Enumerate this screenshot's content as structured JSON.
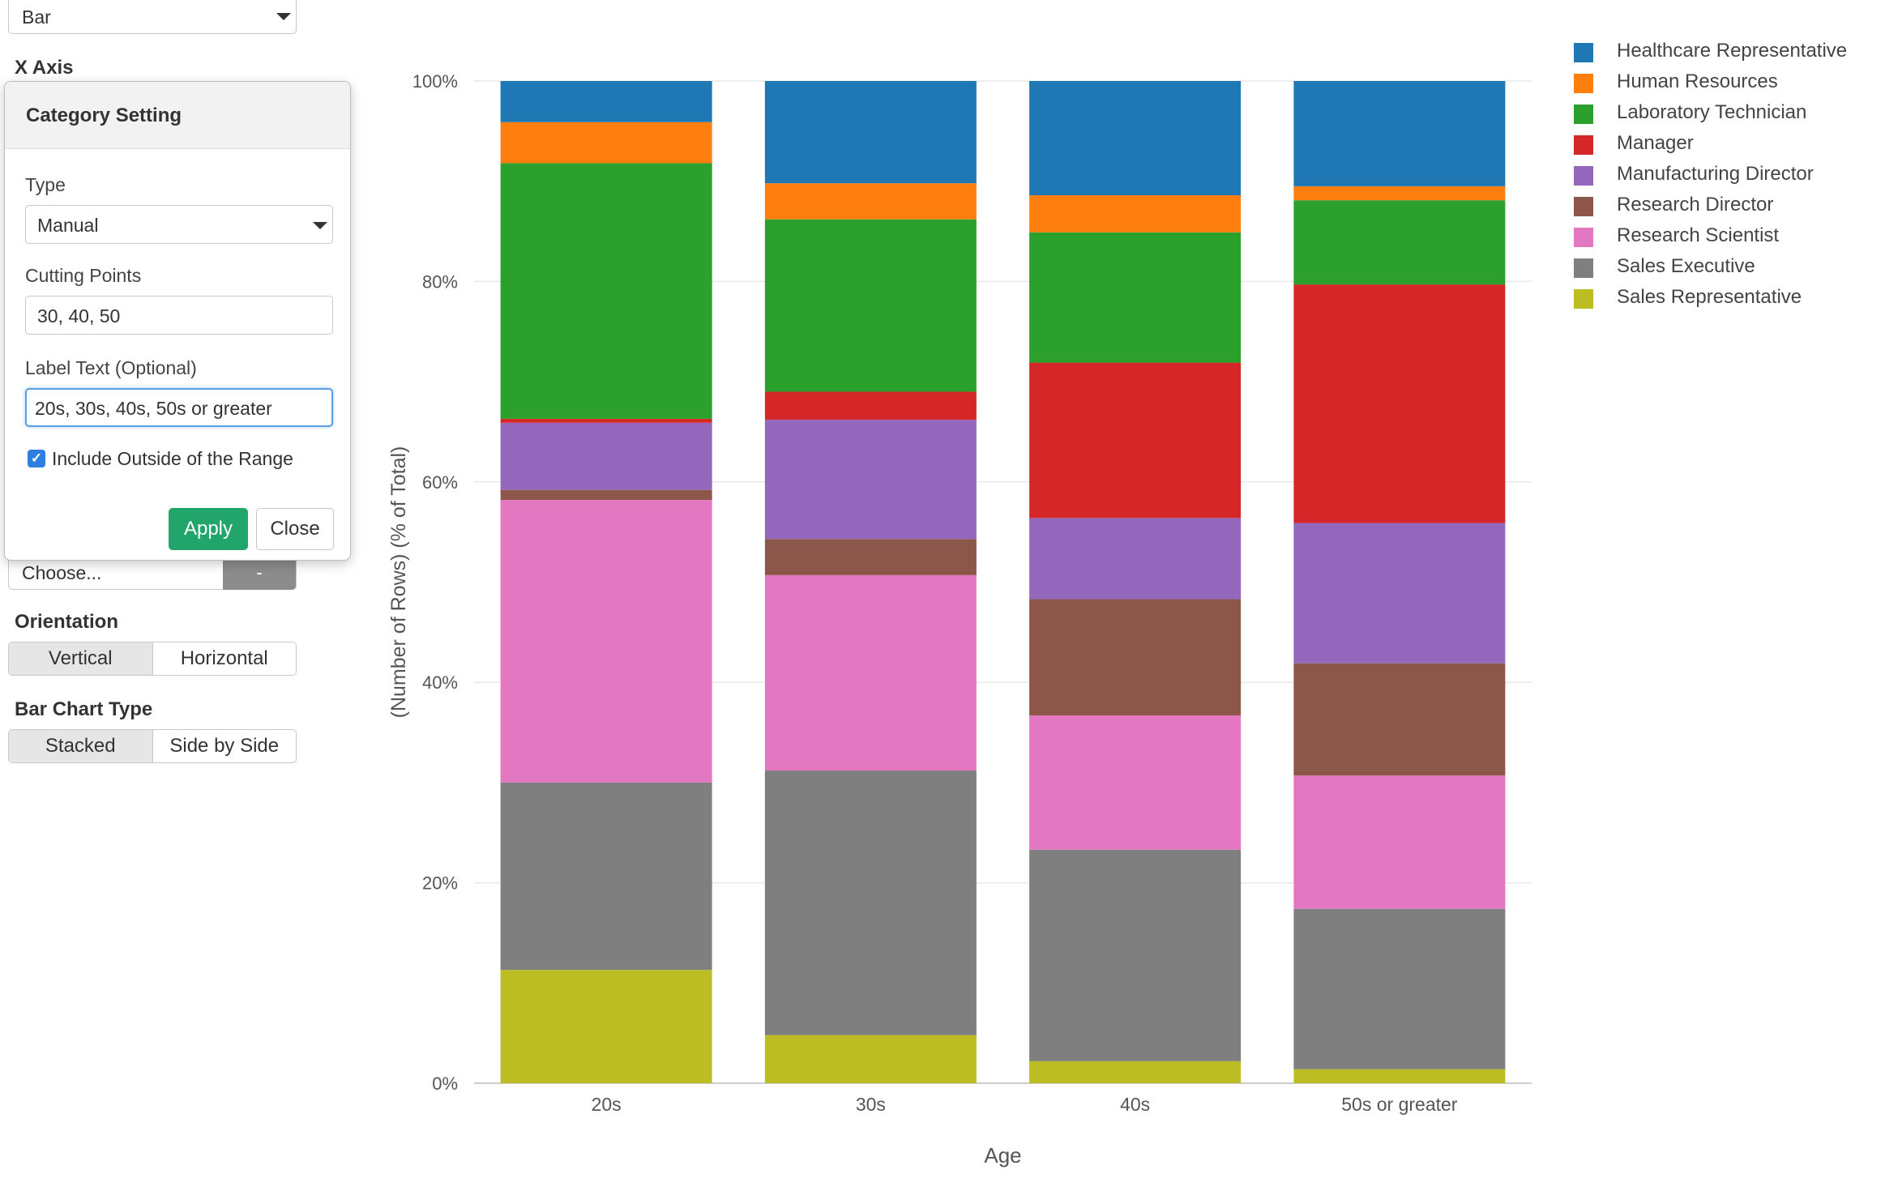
{
  "left_panel": {
    "chart_type_select": "Bar",
    "x_axis_label": "X Axis",
    "choose_placeholder": "Choose...",
    "choose_remove": "-",
    "orientation_label": "Orientation",
    "orientation_options": [
      "Vertical",
      "Horizontal"
    ],
    "orientation_selected": "Vertical",
    "bar_chart_type_label": "Bar Chart Type",
    "bar_chart_type_options": [
      "Stacked",
      "Side by Side"
    ],
    "bar_chart_type_selected": "Stacked"
  },
  "popover": {
    "title": "Category Setting",
    "type_label": "Type",
    "type_value": "Manual",
    "cutting_points_label": "Cutting Points",
    "cutting_points_value": "30, 40, 50",
    "label_text_label": "Label Text (Optional)",
    "label_text_value": "20s, 30s, 40s, 50s or greater",
    "include_outside_label": "Include Outside of the Range",
    "include_outside_checked": true,
    "apply_label": "Apply",
    "close_label": "Close"
  },
  "chart_data": {
    "type": "bar",
    "stacked": true,
    "categories": [
      "20s",
      "30s",
      "40s",
      "50s or greater"
    ],
    "xlabel": "Age",
    "ylabel": "(Number of Rows) (% of Total)",
    "ylim": [
      0,
      100
    ],
    "yticks": [
      "0%",
      "20%",
      "40%",
      "60%",
      "80%",
      "100%"
    ],
    "grid": true,
    "legend_position": "top-right",
    "series": [
      {
        "name": "Sales Representative",
        "color": "#bcbd22",
        "values": [
          11.3,
          4.8,
          2.2,
          1.4
        ]
      },
      {
        "name": "Sales Executive",
        "color": "#7f7f7f",
        "values": [
          18.7,
          26.4,
          21.1,
          16.0
        ]
      },
      {
        "name": "Research Scientist",
        "color": "#e377c2",
        "values": [
          28.2,
          19.5,
          13.4,
          13.3
        ]
      },
      {
        "name": "Research Director",
        "color": "#8c564b",
        "values": [
          1.0,
          3.6,
          11.6,
          11.2
        ]
      },
      {
        "name": "Manufacturing Director",
        "color": "#9467bd",
        "values": [
          6.7,
          11.9,
          8.1,
          14.0
        ]
      },
      {
        "name": "Manager",
        "color": "#d62728",
        "values": [
          0.4,
          2.8,
          15.5,
          23.8
        ]
      },
      {
        "name": "Laboratory Technician",
        "color": "#2ca02c",
        "values": [
          25.5,
          17.2,
          13.0,
          8.4
        ]
      },
      {
        "name": "Human Resources",
        "color": "#ff7f0e",
        "values": [
          4.1,
          3.6,
          3.7,
          1.4
        ]
      },
      {
        "name": "Healthcare Representative",
        "color": "#1f77b4",
        "values": [
          4.1,
          10.2,
          11.4,
          10.5
        ]
      }
    ],
    "legend": [
      {
        "name": "Healthcare Representative",
        "color": "#1f77b4"
      },
      {
        "name": "Human Resources",
        "color": "#ff7f0e"
      },
      {
        "name": "Laboratory Technician",
        "color": "#2ca02c"
      },
      {
        "name": "Manager",
        "color": "#d62728"
      },
      {
        "name": "Manufacturing Director",
        "color": "#9467bd"
      },
      {
        "name": "Research Director",
        "color": "#8c564b"
      },
      {
        "name": "Research Scientist",
        "color": "#e377c2"
      },
      {
        "name": "Sales Executive",
        "color": "#7f7f7f"
      },
      {
        "name": "Sales Representative",
        "color": "#bcbd22"
      }
    ]
  }
}
